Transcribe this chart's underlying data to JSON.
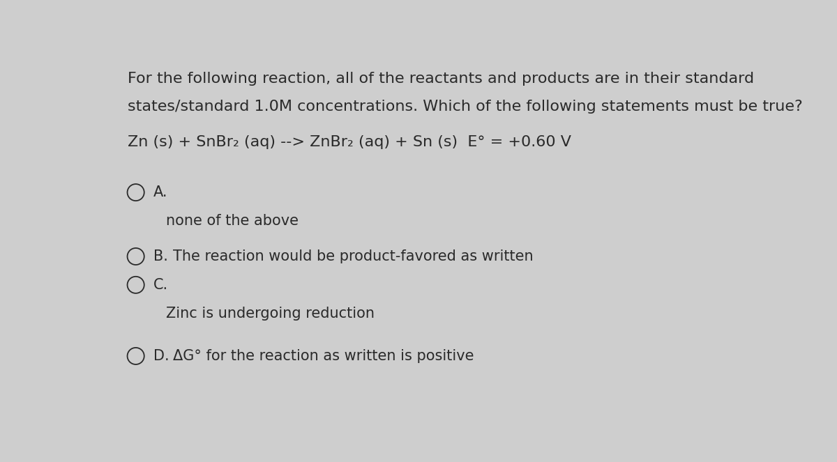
{
  "background_color": "#cecece",
  "title_lines": [
    "For the following reaction, all of the reactants and products are in their standard",
    "states/standard 1.0M concentrations. Which of the following statements must be true?"
  ],
  "reaction_line": "Zn (s) + SnBr₂ (aq) --> ZnBr₂ (aq) + Sn (s)  E° = +0.60 V",
  "options": [
    {
      "label": "A.",
      "text": "none of the above",
      "text_on_next_line": true
    },
    {
      "label": "B.",
      "text": "The reaction would be product-favored as written",
      "text_on_next_line": false
    },
    {
      "label": "C.",
      "text": "Zinc is undergoing reduction",
      "text_on_next_line": true
    },
    {
      "label": "D.",
      "text": "ΔG° for the reaction as written is positive",
      "text_on_next_line": false
    }
  ],
  "text_color": "#2a2a2a",
  "circle_color": "#2a2a2a",
  "font_size_body": 16,
  "font_size_reaction": 16,
  "font_size_options": 15
}
